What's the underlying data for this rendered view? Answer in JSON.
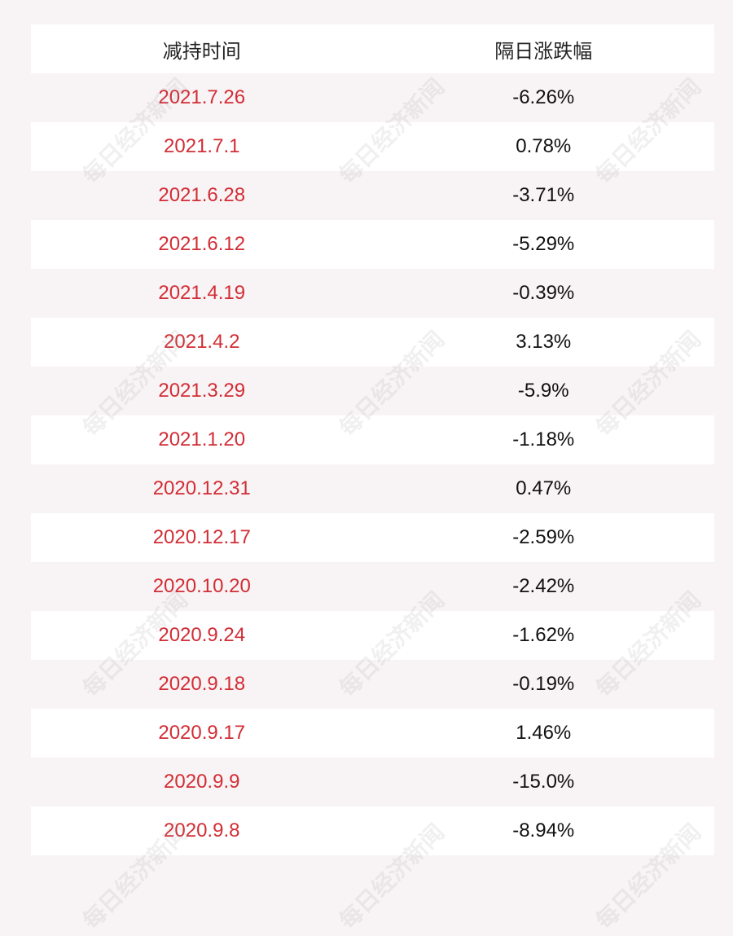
{
  "watermark": "每日经济新闻",
  "table": {
    "header": [
      "减持时间",
      "隔日涨跌幅"
    ],
    "rows": [
      [
        "2021.7.26",
        "-6.26%"
      ],
      [
        "2021.7.1",
        "0.78%"
      ],
      [
        "2021.6.28",
        "-3.71%"
      ],
      [
        "2021.6.12",
        "-5.29%"
      ],
      [
        "2021.4.19",
        "-0.39%"
      ],
      [
        "2021.4.2",
        "3.13%"
      ],
      [
        "2021.3.29",
        "-5.9%"
      ],
      [
        "2021.1.20",
        "-1.18%"
      ],
      [
        "2020.12.31",
        "0.47%"
      ],
      [
        "2020.12.17",
        "-2.59%"
      ],
      [
        "2020.10.20",
        "-2.42%"
      ],
      [
        "2020.9.24",
        "-1.62%"
      ],
      [
        "2020.9.18",
        "-0.19%"
      ],
      [
        "2020.9.17",
        "1.46%"
      ],
      [
        "2020.9.9",
        "-15.0%"
      ],
      [
        "2020.9.8",
        "-8.94%"
      ]
    ]
  }
}
